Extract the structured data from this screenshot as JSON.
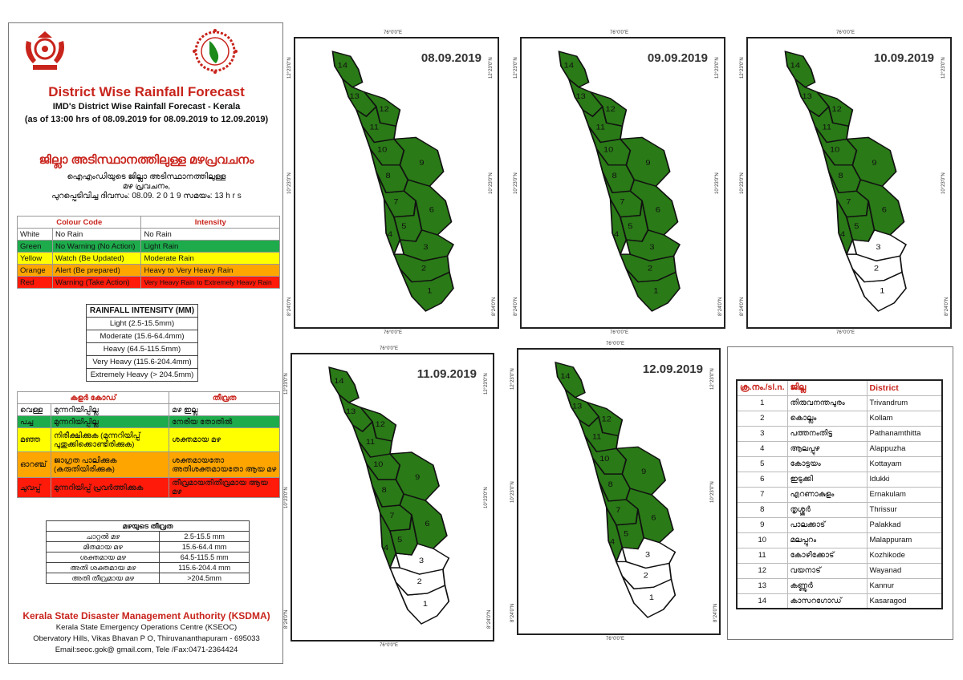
{
  "header": {
    "title_en": "District Wise Rainfall Forecast",
    "subtitle_1": "IMD's District Wise Rainfall Forecast - Kerala",
    "subtitle_2": "(as of 13:00 hrs of 08.09.2019  for 08.09.2019  to 12.09.2019)",
    "title_ml": "ജില്ലാ അടിസ്ഥാനത്തിലുള്ള മഴപ്രവചനം",
    "ml_line_1": "ഐഎംഡിയുടെ ജില്ലാ  അടിസ്ഥാനത്തിലുള്ള",
    "ml_line_2": "മഴ പ്രവചനം,",
    "ml_line_3": "പുറപ്പെടിവിച്ച  ദിവസം: 08.09. 2 0 1 9  സമയം: 13 h r s"
  },
  "colour_code_en": {
    "header_code": "Colour Code",
    "header_intensity": "Intensity",
    "rows": [
      {
        "color": "White",
        "code": "No Rain",
        "intensity": "No Rain"
      },
      {
        "color": "Green",
        "code": "No Warning (No Action)",
        "intensity": "Light Rain"
      },
      {
        "color": "Yellow",
        "code": "Watch (Be Updated)",
        "intensity": "Moderate Rain"
      },
      {
        "color": "Orange",
        "code": "Alert (Be prepared)",
        "intensity": "Heavy to Very Heavy Rain"
      },
      {
        "color": "Red",
        "code": "Warning (Take Action)",
        "intensity": "Very Heavy Rain to Extremely Heavy Rain"
      }
    ]
  },
  "rainfall_intensity_en": {
    "header": "RAINFALL INTENSITY (MM)",
    "rows": [
      "Light (2.5-15.5mm)",
      "Moderate (15.6-64.4mm)",
      "Heavy (64.5-115.5mm)",
      "Very Heavy (115.6-204.4mm)",
      "Extremely Heavy (> 204.5mm)"
    ]
  },
  "colour_code_ml": {
    "header_code": "കളർ കോഡ്",
    "header_intensity": "തീവ്രത",
    "rows": [
      {
        "color": "വെള്ള",
        "code": "മുന്നറിയിപ്പില്ല",
        "intensity": "മഴ ഇല്ല"
      },
      {
        "color": "പച്ച",
        "code": "മുന്നറിയിപ്പില്ല",
        "intensity": "നേരിയ തോതിൽ"
      },
      {
        "color": "മഞ്ഞ",
        "code": "നിരീക്ഷിക്കുക (മുന്നറിയിപ്പ് പുതുക്കിക്കൊണ്ടിരിക്കുക)",
        "intensity": "ശക്തമായ മഴ"
      },
      {
        "color": "ഓറഞ്ച്",
        "code": "ജാഗ്രത പാലിക്കുക (കരുതിയിരിക്കുക)",
        "intensity": "ശക്തമായതോ അതിശക്തമായതോ ആയ മഴ"
      },
      {
        "color": "ചുവപ്പ്",
        "code": "മുന്നറിയിപ്പ് പ്രവർത്തിക്കുക",
        "intensity": "തീവ്രമായതിതീവ്രമായ ആയ മഴ"
      }
    ]
  },
  "rainfall_intensity_ml": {
    "header": "മഴയുടെ തീവ്രത",
    "rows": [
      {
        "label": "ചാറ്റൽ മഴ",
        "range": "2.5-15.5 mm"
      },
      {
        "label": "മിതമായ മഴ",
        "range": "15.6-64.4 mm"
      },
      {
        "label": "ശക്തമായ മഴ",
        "range": "64.5-115.5 mm"
      },
      {
        "label": "അതി ശക്തമായ മഴ",
        "range": "115.6-204.4 mm"
      },
      {
        "label": "അതി തീവ്രമായ മഴ",
        "range": ">204.5mm"
      }
    ]
  },
  "footer": {
    "org": "Kerala State Disaster Management Authority (KSDMA)",
    "line1": "Kerala State Emergency Operations Centre (KSEOC)",
    "line2": "Obervatory Hills, Vikas Bhavan P O, Thiruvananthapuram - 695033",
    "line3": "Email:seoc.gok@ gmail.com, Tele /Fax:0471-2364424"
  },
  "map_coords": {
    "lon": "76°0'0\"E",
    "lat_top": "12°23'0\"N",
    "lat_mid": "10°23'0\"N",
    "lat_bot": "8°24'0\"N"
  },
  "colors": {
    "green": "#2a7a17",
    "white": "#ffffff",
    "border": "#111111"
  },
  "maps": [
    {
      "date": "08.09.2019",
      "white_districts": []
    },
    {
      "date": "09.09.2019",
      "white_districts": []
    },
    {
      "date": "10.09.2019",
      "white_districts": [
        1,
        2,
        3
      ]
    },
    {
      "date": "11.09.2019",
      "white_districts": [
        1,
        2,
        3
      ]
    },
    {
      "date": "12.09.2019",
      "white_districts": [
        1,
        2,
        3
      ]
    }
  ],
  "districts": {
    "headers": [
      "ക്ര.നം./sl.n.",
      "ജില്ല",
      "District"
    ],
    "rows": [
      [
        "1",
        "തിരുവനന്തപുരം",
        "Trivandrum"
      ],
      [
        "2",
        "കൊല്ലം",
        "Kollam"
      ],
      [
        "3",
        "പത്തനംതിട്ട",
        "Pathanamthitta"
      ],
      [
        "4",
        "ആലപ്പുഴ",
        "Alappuzha"
      ],
      [
        "5",
        "കോട്ടയം",
        "Kottayam"
      ],
      [
        "6",
        "ഇടുക്കി",
        "Idukki"
      ],
      [
        "7",
        "എറണാകുളം",
        "Ernakulam"
      ],
      [
        "8",
        "തൃശ്ശൂർ",
        "Thrissur"
      ],
      [
        "9",
        "പാലക്കാട്",
        "Palakkad"
      ],
      [
        "10",
        "മലപ്പുറം",
        "Malappuram"
      ],
      [
        "11",
        "കോഴിക്കോട്",
        "Kozhikode"
      ],
      [
        "12",
        "വയനാട്",
        "Wayanad"
      ],
      [
        "13",
        "കണ്ണൂർ",
        "Kannur"
      ],
      [
        "14",
        "കാസറഗോഡ്",
        "Kasaragod"
      ]
    ]
  }
}
